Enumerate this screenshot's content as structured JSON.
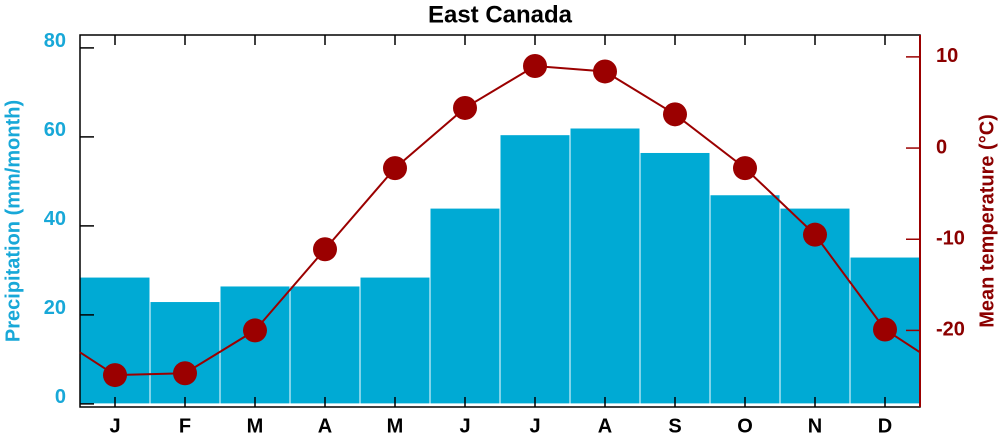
{
  "chart_data": {
    "type": "bar-line",
    "title": "East Canada",
    "categories": [
      "J",
      "F",
      "M",
      "A",
      "M",
      "J",
      "J",
      "A",
      "S",
      "O",
      "N",
      "D"
    ],
    "series": [
      {
        "name": "Precipitation (mm/month)",
        "type": "bar",
        "color": "#00aad4",
        "values": [
          28.5,
          23,
          26.5,
          26.5,
          28.5,
          44,
          60.5,
          62,
          56.5,
          47,
          44,
          33
        ]
      },
      {
        "name": "Mean temperature (°C)",
        "type": "line",
        "axis": "y2",
        "color": "#9b0000",
        "values": [
          -24.9,
          -24.7,
          -20,
          -11.1,
          -2.2,
          4.4,
          9,
          8.4,
          3.7,
          -2.2,
          -9.5,
          -19.9
        ]
      }
    ],
    "ylim": [
      -0.7,
      82.9
    ],
    "yticks": [
      0,
      20,
      40,
      60,
      80
    ],
    "y2lim": [
      -28.4,
      12.4
    ],
    "y2ticks": [
      -20,
      -10,
      0,
      10
    ],
    "ylabel": "Precipitation (mm/month)",
    "y2label": "Mean temperature (°C)"
  }
}
